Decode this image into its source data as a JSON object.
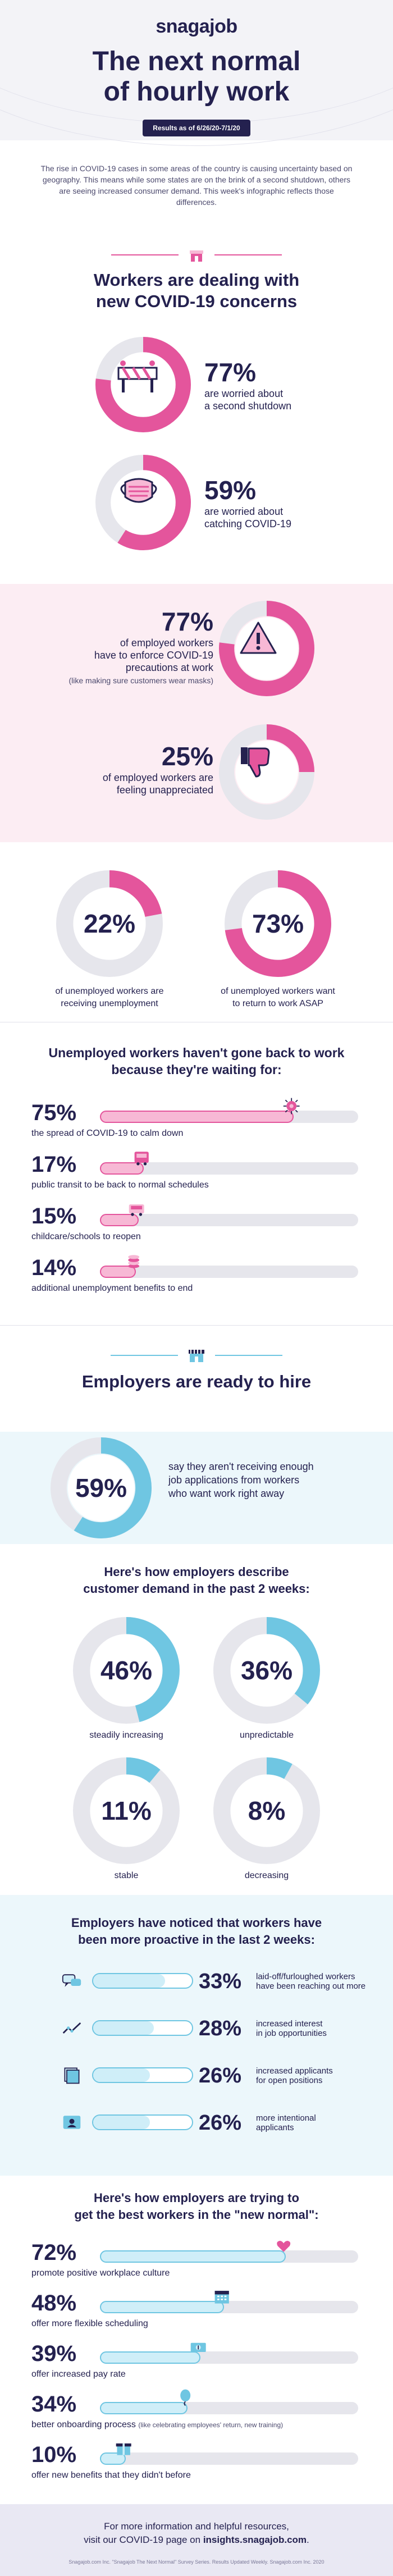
{
  "header": {
    "logo": "snagajob",
    "title_line1": "The next normal",
    "title_line2": "of hourly work",
    "results_badge": "Results as of 6/26/20-7/1/20",
    "intro": "The rise in COVID-19 cases in some areas of the country is causing uncertainty based on geography. This means while some states are on the brink of a second shutdown, others are seeing increased consumer demand. This week's infographic reflects those differences."
  },
  "workers": {
    "title_line1": "Workers are dealing with",
    "title_line2": "new COVID-19 concerns",
    "stats": [
      {
        "value": "77%",
        "label_line1": "are worried about",
        "label_line2": "a second shutdown",
        "fraction": 0.77,
        "icon": "barrier-icon"
      },
      {
        "value": "59%",
        "label_line1": "are worried about",
        "label_line2": "catching COVID-19",
        "fraction": 0.59,
        "icon": "face-mask-icon"
      }
    ]
  },
  "employed": {
    "stats": [
      {
        "value": "77%",
        "label_line1": "of employed workers",
        "label_line2": "have to enforce COVID-19",
        "label_line3": "precautions at work",
        "note": "(like making sure customers wear masks)",
        "fraction": 0.77,
        "icon": "warning-icon"
      },
      {
        "value": "25%",
        "label_line1": "of employed workers are",
        "label_line2": "feeling unappreciated",
        "fraction": 0.25,
        "icon": "thumbs-down-icon"
      }
    ]
  },
  "unemployed": {
    "stats": [
      {
        "value": "22%",
        "label_line1": "of unemployed workers are",
        "label_line2": "receiving unemployment",
        "fraction": 0.22
      },
      {
        "value": "73%",
        "label_line1": "of unemployed workers want",
        "label_line2": "to return to work ASAP",
        "fraction": 0.73
      }
    ],
    "waiting_title_line1": "Unemployed workers haven't gone back to work",
    "waiting_title_line2": "because they're waiting for:",
    "waiting": [
      {
        "value": "75%",
        "label": "the spread of COVID-19 to calm down",
        "fraction": 0.75,
        "icon": "virus-icon"
      },
      {
        "value": "17%",
        "label": "public transit to be back to normal schedules",
        "fraction": 0.17,
        "icon": "bus-icon"
      },
      {
        "value": "15%",
        "label": "childcare/schools to reopen",
        "fraction": 0.15,
        "icon": "school-bus-icon"
      },
      {
        "value": "14%",
        "label": "additional unemployment benefits to end",
        "fraction": 0.14,
        "icon": "coins-icon"
      }
    ]
  },
  "employers": {
    "title": "Employers are ready to hire",
    "applications": {
      "value": "59%",
      "label_line1": "say they aren't receiving enough",
      "label_line2": "job applications from workers",
      "label_line3": "who want work right away",
      "fraction": 0.59
    },
    "demand_title_line1": "Here's how employers describe",
    "demand_title_line2": "customer demand in the past 2 weeks:",
    "demand": [
      {
        "value": "46%",
        "label": "steadily increasing",
        "fraction": 0.46
      },
      {
        "value": "36%",
        "label": "unpredictable",
        "fraction": 0.36
      },
      {
        "value": "11%",
        "label": "stable",
        "fraction": 0.11
      },
      {
        "value": "8%",
        "label": "decreasing",
        "fraction": 0.08
      }
    ],
    "proactive_title_line1": "Employers have noticed that workers have",
    "proactive_title_line2": "been more proactive in the last 2 weeks:",
    "proactive": [
      {
        "value": "33%",
        "label_line1": "laid-off/furloughed workers",
        "label_line2": "have been reaching out more",
        "fraction": 0.33,
        "icon": "chat-icon"
      },
      {
        "value": "28%",
        "label_line1": "increased interest",
        "label_line2": "in job opportunities",
        "fraction": 0.28,
        "icon": "trend-up-icon"
      },
      {
        "value": "26%",
        "label_line1": "increased applicants",
        "label_line2": "for open positions",
        "fraction": 0.26,
        "icon": "documents-icon"
      },
      {
        "value": "26%",
        "label_line1": "more intentional",
        "label_line2": "applicants",
        "fraction": 0.26,
        "icon": "profile-icon"
      }
    ],
    "best_title_line1": "Here's how employers are trying to",
    "best_title_line2": "get the best workers in the \"new normal\":",
    "best": [
      {
        "value": "72%",
        "label": "promote positive workplace culture",
        "fraction": 0.72,
        "icon": "hearts-icon"
      },
      {
        "value": "48%",
        "label": "offer more flexible scheduling",
        "fraction": 0.48,
        "icon": "calendar-icon"
      },
      {
        "value": "39%",
        "label": "offer increased pay rate",
        "fraction": 0.39,
        "icon": "money-icon"
      },
      {
        "value": "34%",
        "label": "better onboarding process",
        "label_note": "(like celebrating employees' return, new training)",
        "fraction": 0.34,
        "icon": "balloon-icon"
      },
      {
        "value": "10%",
        "label": "offer new benefits that they didn't before",
        "fraction": 0.1,
        "icon": "gift-icon"
      }
    ]
  },
  "footer": {
    "line1": "For more information and helpful resources,",
    "line2_pre": "visit our COVID-19 page on ",
    "line2_link": "insights.snagajob.com",
    "line2_post": ".",
    "fineprint": "Snagajob.com Inc. \"Snagajob The Next Normal\" Survey Series. Results Updated Weekly. Snagajob.com Inc. 2020"
  },
  "colors": {
    "navy": "#24214f",
    "pink": "#e4559c",
    "pink_light": "#f7b8d5",
    "blue": "#6fc6e2",
    "blue_light": "#cfeef8",
    "track": "#e6e6ec"
  }
}
